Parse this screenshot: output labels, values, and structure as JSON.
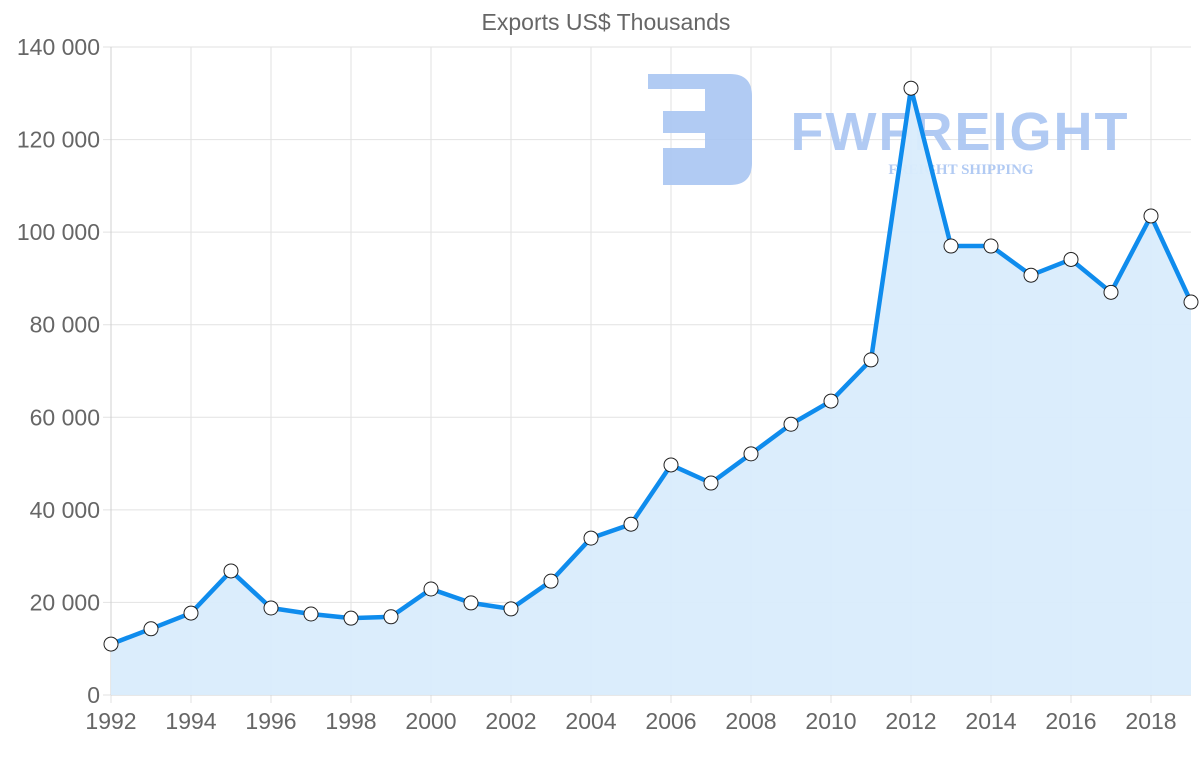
{
  "chart_data": {
    "type": "line",
    "title": "Exports US$ Thousands",
    "xlabel": "",
    "ylabel": "",
    "x": [
      1992,
      1993,
      1994,
      1995,
      1996,
      1997,
      1998,
      1999,
      2000,
      2001,
      2002,
      2003,
      2004,
      2005,
      2006,
      2007,
      2008,
      2009,
      2010,
      2011,
      2012,
      2013,
      2014,
      2015,
      2016,
      2017,
      2018,
      2019
    ],
    "series": [
      {
        "name": "Exports US$ Thousands",
        "values": [
          11000,
          14300,
          17700,
          26800,
          18800,
          17500,
          16600,
          16900,
          22900,
          19900,
          18600,
          24600,
          33900,
          36900,
          49700,
          45800,
          52100,
          58500,
          63500,
          72400,
          131100,
          97000,
          97000,
          90700,
          94100,
          87000,
          103500,
          84900
        ]
      }
    ],
    "ylim": [
      0,
      140000
    ],
    "y_ticks": [
      0,
      20000,
      40000,
      60000,
      80000,
      100000,
      120000,
      140000
    ],
    "y_tick_labels": [
      "0",
      "20 000",
      "40 000",
      "60 000",
      "80 000",
      "100 000",
      "120 000",
      "140 000"
    ],
    "x_tick_labels": [
      "1992",
      "1994",
      "1996",
      "1998",
      "2000",
      "2002",
      "2004",
      "2006",
      "2008",
      "2010",
      "2012",
      "2014",
      "2016",
      "2018"
    ],
    "grid": true,
    "legend": "none",
    "fill": true
  },
  "colors": {
    "line": "#0f8ced",
    "fill": "#d9ecfc",
    "grid": "#e2e2e2",
    "axis_text": "#666666",
    "title_text": "#666666",
    "watermark": "#a9c5f2",
    "point_fill": "#ffffff",
    "point_stroke": "#222222"
  },
  "watermark": {
    "brand": "FWFREIGHT",
    "tagline": "FREIGHT SHIPPING"
  }
}
